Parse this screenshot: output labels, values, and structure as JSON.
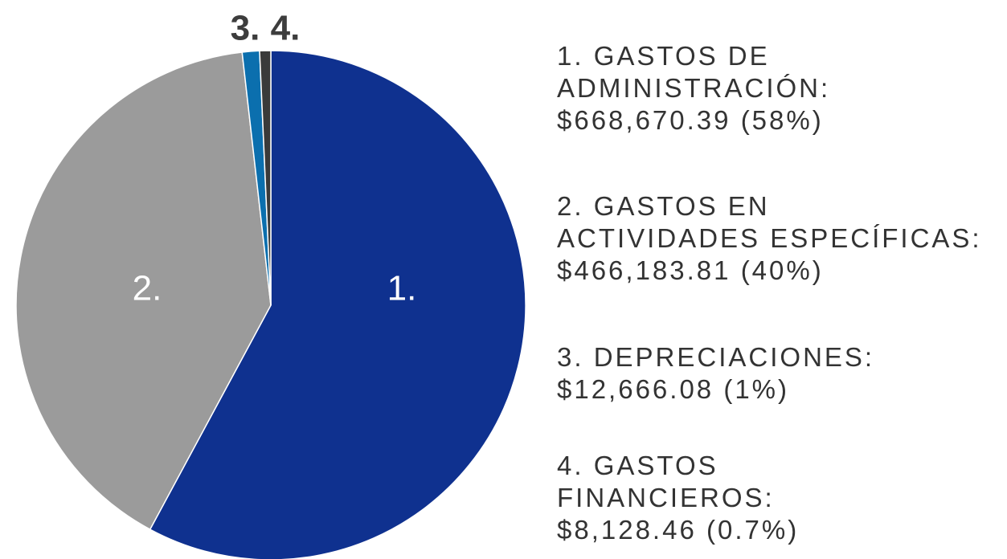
{
  "chart_data": {
    "type": "pie",
    "category_lines": [
      [
        "1. GASTOS DE",
        "ADMINISTRACIÓN:"
      ],
      [
        "2. GASTOS EN",
        "ACTIVIDADES ESPECÍFICAS:"
      ],
      [
        "3. DEPRECIACIONES:"
      ],
      [
        "4. GASTOS",
        "FINANCIEROS:"
      ]
    ],
    "slice_labels": [
      "1.",
      "2.",
      "3.",
      "4."
    ],
    "values": [
      668670.39,
      466183.81,
      12666.08,
      8128.46
    ],
    "value_labels": [
      "$668,670.39",
      "$466,183.81",
      "$12,666.08",
      "$8,128.46"
    ],
    "percents": [
      58,
      40,
      1,
      0.7
    ],
    "percent_labels": [
      "(58%)",
      "(40%)",
      "(1%)",
      "(0.7%)"
    ],
    "colors": [
      "#0f318f",
      "#9b9b9b",
      "#0b6fae",
      "#3a3a3a"
    ]
  }
}
